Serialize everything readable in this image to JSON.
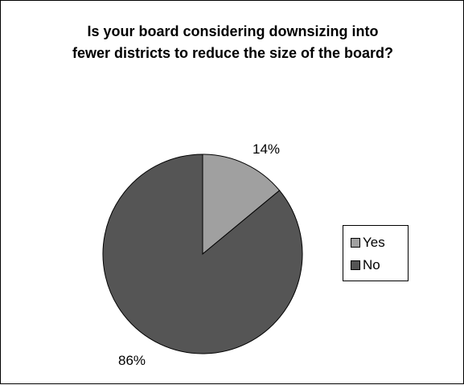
{
  "chart_data": {
    "type": "pie",
    "title_lines": [
      "Is your board considering downsizing into",
      "fewer districts to reduce the size of the board?"
    ],
    "categories": [
      "Yes",
      "No"
    ],
    "values": [
      14,
      86
    ],
    "labels": [
      "14%",
      "86%"
    ],
    "colors": [
      "#A0A0A0",
      "#555555"
    ],
    "legend_position": "right"
  }
}
